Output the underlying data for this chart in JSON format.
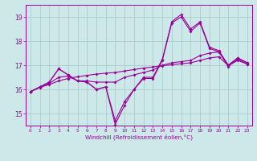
{
  "x": [
    0,
    1,
    2,
    3,
    4,
    5,
    6,
    7,
    8,
    9,
    10,
    11,
    12,
    13,
    14,
    15,
    16,
    17,
    18,
    19,
    20,
    21,
    22,
    23
  ],
  "line1": [
    15.9,
    16.1,
    16.3,
    16.85,
    16.6,
    16.35,
    16.3,
    16.0,
    16.1,
    14.7,
    15.5,
    16.0,
    16.5,
    16.5,
    17.25,
    18.8,
    19.1,
    18.5,
    18.8,
    17.75,
    17.6,
    17.0,
    17.3,
    17.1
  ],
  "line2": [
    15.9,
    16.1,
    16.3,
    16.85,
    16.6,
    16.35,
    16.3,
    16.0,
    16.1,
    14.55,
    15.35,
    16.0,
    16.45,
    16.45,
    17.2,
    18.75,
    19.0,
    18.4,
    18.75,
    17.7,
    17.55,
    16.95,
    17.25,
    17.05
  ],
  "line3": [
    15.9,
    16.1,
    16.25,
    16.5,
    16.55,
    16.35,
    16.35,
    16.3,
    16.3,
    16.3,
    16.5,
    16.6,
    16.7,
    16.8,
    17.0,
    17.1,
    17.15,
    17.2,
    17.4,
    17.5,
    17.55,
    17.0,
    17.3,
    17.1
  ],
  "line4": [
    15.9,
    16.08,
    16.2,
    16.35,
    16.45,
    16.52,
    16.58,
    16.63,
    16.67,
    16.7,
    16.76,
    16.82,
    16.88,
    16.93,
    16.98,
    17.02,
    17.06,
    17.1,
    17.2,
    17.3,
    17.35,
    16.98,
    17.2,
    17.05
  ],
  "color": "#990099",
  "background": "#cce8e8",
  "grid_color": "#aacccc",
  "ylim": [
    14.5,
    19.5
  ],
  "xlim": [
    -0.5,
    23.5
  ],
  "yticks": [
    15,
    16,
    17,
    18,
    19
  ],
  "xlabel": "Windchill (Refroidissement éolien,°C)"
}
